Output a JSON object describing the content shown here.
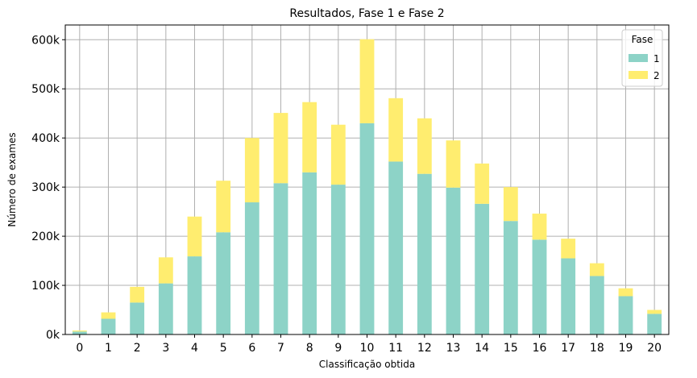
{
  "chart_data": {
    "type": "bar",
    "stacked": true,
    "title": "Resultados, Fase 1 e Fase 2",
    "xlabel": "Classificação obtida",
    "ylabel": "Número de exames",
    "categories": [
      "0",
      "1",
      "2",
      "3",
      "4",
      "5",
      "6",
      "7",
      "8",
      "9",
      "10",
      "11",
      "12",
      "13",
      "14",
      "15",
      "16",
      "17",
      "18",
      "19",
      "20"
    ],
    "series": [
      {
        "name": "1",
        "color": "#8dd3c7",
        "values": [
          6000,
          32000,
          65000,
          104000,
          159000,
          208000,
          269000,
          308000,
          330000,
          305000,
          430000,
          352000,
          327000,
          299000,
          266000,
          231000,
          193000,
          155000,
          119000,
          78000,
          42000
        ]
      },
      {
        "name": "2",
        "color": "#ffed6f",
        "values": [
          2000,
          13000,
          32000,
          53000,
          81000,
          105000,
          131000,
          143000,
          143000,
          122000,
          171000,
          129000,
          113000,
          96000,
          82000,
          69000,
          53000,
          40000,
          26000,
          16000,
          8000
        ]
      }
    ],
    "ylim": [
      0,
      630000
    ],
    "yticks": [
      0,
      100000,
      200000,
      300000,
      400000,
      500000,
      600000
    ],
    "ytick_labels": [
      "0k",
      "100k",
      "200k",
      "300k",
      "400k",
      "500k",
      "600k"
    ],
    "grid": true,
    "legend": {
      "title": "Fase",
      "position": "top-right"
    }
  }
}
